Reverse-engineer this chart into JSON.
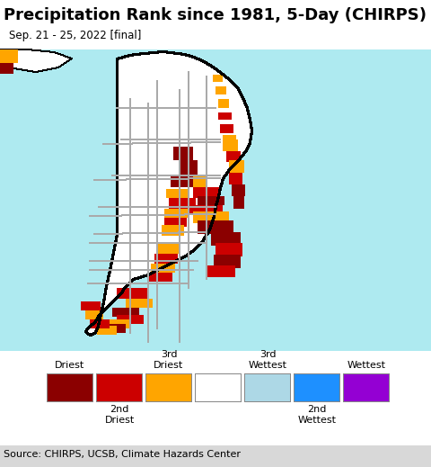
{
  "title": "Precipitation Rank since 1981, 5-Day (CHIRPS)",
  "subtitle": "Sep. 21 - 25, 2022 [final]",
  "source": "Source: CHIRPS, UCSB, Climate Hazards Center",
  "bg_color": [
    174,
    234,
    240
  ],
  "land_color": [
    255,
    255,
    255
  ],
  "border_color": [
    0,
    0,
    0
  ],
  "province_color": [
    170,
    170,
    170
  ],
  "driest_color": [
    139,
    0,
    0
  ],
  "second_driest_color": [
    204,
    0,
    0
  ],
  "third_driest_color": [
    255,
    165,
    0
  ],
  "third_wettest_color": [
    173,
    216,
    230
  ],
  "second_wettest_color": [
    30,
    144,
    255
  ],
  "wettest_color": [
    148,
    0,
    211
  ],
  "white_color": [
    255,
    255,
    255
  ],
  "legend_colors": [
    "#8b0000",
    "#cc0000",
    "#ffa500",
    "#ffffff",
    "#add8e6",
    "#1e90ff",
    "#9400d3"
  ],
  "title_fontsize": 13,
  "subtitle_fontsize": 8.5,
  "source_fontsize": 8,
  "legend_fontsize": 8
}
